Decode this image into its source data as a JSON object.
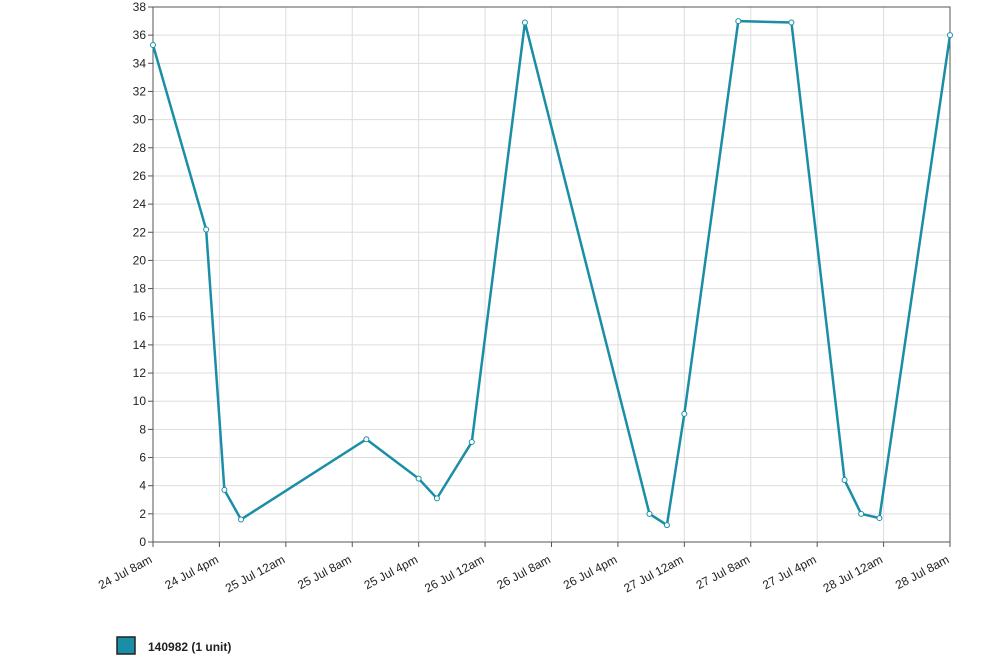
{
  "chart_data": {
    "type": "line",
    "x": [
      0,
      6.4,
      8.6,
      10.6,
      25.7,
      32.0,
      34.2,
      38.4,
      44.8,
      59.8,
      61.9,
      64.0,
      70.5,
      76.9,
      83.3,
      85.3,
      87.5,
      96
    ],
    "series": [
      {
        "name": "140982 (1 unit)",
        "color": "#1a8ea6",
        "values": [
          35.3,
          22.2,
          3.7,
          1.6,
          7.3,
          4.5,
          3.1,
          7.1,
          36.9,
          2.0,
          1.2,
          9.1,
          37.0,
          36.9,
          4.4,
          2.0,
          1.7,
          36.0
        ]
      }
    ],
    "xlim": [
      0,
      96
    ],
    "xticks": [
      {
        "value": 0,
        "label": "24 Jul 8am"
      },
      {
        "value": 8,
        "label": "24 Jul 4pm"
      },
      {
        "value": 16,
        "label": "25 Jul 12am"
      },
      {
        "value": 24,
        "label": "25 Jul 8am"
      },
      {
        "value": 32,
        "label": "25 Jul 4pm"
      },
      {
        "value": 40,
        "label": "26 Jul 12am"
      },
      {
        "value": 48,
        "label": "26 Jul 8am"
      },
      {
        "value": 56,
        "label": "26 Jul 4pm"
      },
      {
        "value": 64,
        "label": "27 Jul 12am"
      },
      {
        "value": 72,
        "label": "27 Jul 8am"
      },
      {
        "value": 80,
        "label": "27 Jul 4pm"
      },
      {
        "value": 88,
        "label": "28 Jul 12am"
      },
      {
        "value": 96,
        "label": "28 Jul 8am"
      }
    ],
    "ylim": [
      0,
      38
    ],
    "yticks": [
      0,
      2,
      4,
      6,
      8,
      10,
      12,
      14,
      16,
      18,
      20,
      22,
      24,
      26,
      28,
      30,
      32,
      34,
      36,
      38
    ],
    "grid": true
  }
}
